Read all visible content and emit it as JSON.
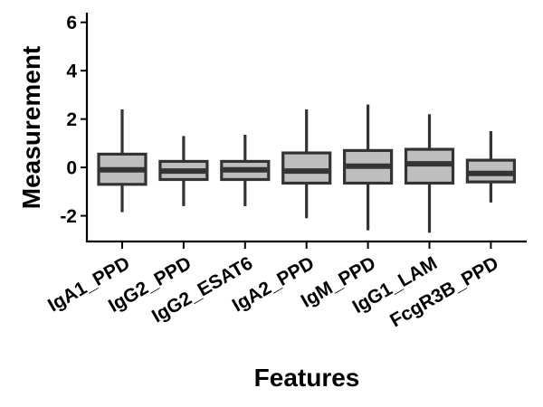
{
  "chart_data": {
    "type": "boxplot",
    "title": "",
    "xlabel": "Features",
    "ylabel": "Measurement",
    "ylim": [
      -3.1,
      6.4
    ],
    "yticks": [
      -2,
      0,
      2,
      4,
      6
    ],
    "ytick_labels": [
      "-2",
      "0",
      "2",
      "4",
      "6"
    ],
    "grid": false,
    "legend": "none",
    "box_fill": "#bebebe",
    "box_stroke": "#333333",
    "categories": [
      "IgA1_PPD",
      "IgG2_PPD",
      "IgG2_ESAT6",
      "IgA2_PPD",
      "IgM_PPD",
      "IgG1_LAM",
      "FcgR3B_PPD"
    ],
    "boxes": [
      {
        "min": -1.85,
        "q1": -0.7,
        "median": -0.1,
        "q3": 0.55,
        "max": 2.4
      },
      {
        "min": -1.6,
        "q1": -0.5,
        "median": -0.15,
        "q3": 0.25,
        "max": 1.3
      },
      {
        "min": -1.6,
        "q1": -0.5,
        "median": -0.1,
        "q3": 0.25,
        "max": 1.35
      },
      {
        "min": -2.1,
        "q1": -0.65,
        "median": -0.15,
        "q3": 0.6,
        "max": 2.4
      },
      {
        "min": -2.6,
        "q1": -0.65,
        "median": 0.05,
        "q3": 0.7,
        "max": 2.6
      },
      {
        "min": -2.7,
        "q1": -0.65,
        "median": 0.15,
        "q3": 0.75,
        "max": 2.2
      },
      {
        "min": -1.45,
        "q1": -0.6,
        "median": -0.25,
        "q3": 0.3,
        "max": 1.5
      }
    ]
  }
}
